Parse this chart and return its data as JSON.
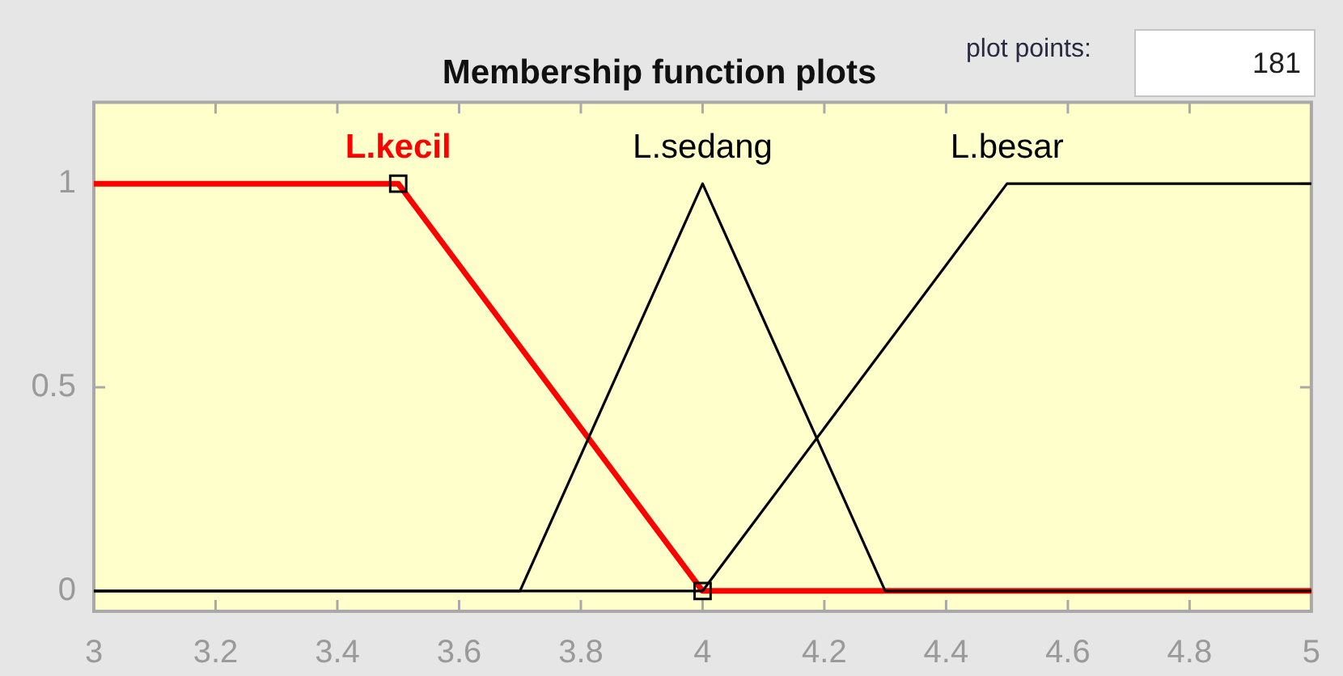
{
  "chart_data": {
    "type": "line",
    "title": "Membership function plots",
    "annotations": [
      "plot points:",
      "181"
    ],
    "xlim": [
      3,
      5
    ],
    "xticks": [
      3,
      3.2,
      3.4,
      3.6,
      3.8,
      4,
      4.2,
      4.4,
      4.6,
      4.8,
      5
    ],
    "ylim": [
      -0.05,
      1.2
    ],
    "yticks": [
      0,
      0.5,
      1
    ],
    "series": [
      {
        "name": "L.kecil",
        "color": "#ff0000",
        "x": [
          3,
          3.5,
          4,
          5
        ],
        "values": [
          1,
          1,
          0,
          0
        ]
      },
      {
        "name": "L.sedang",
        "color": "#000000",
        "x": [
          3,
          3.7,
          4,
          4.3,
          5
        ],
        "values": [
          0,
          0,
          1,
          0,
          0
        ]
      },
      {
        "name": "L.besar",
        "color": "#000000",
        "x": [
          3,
          4,
          4.5,
          5
        ],
        "values": [
          0,
          0,
          1,
          1
        ]
      },
      {
        "type": "scatter",
        "color": "#000000",
        "marker": "square",
        "x": [
          3.5,
          4
        ],
        "values": [
          1,
          0
        ]
      }
    ]
  }
}
